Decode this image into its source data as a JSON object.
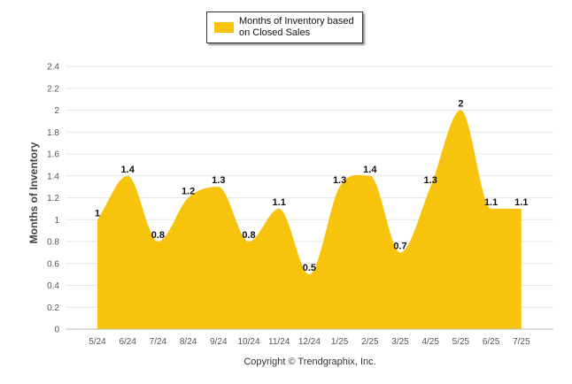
{
  "chart_data": {
    "type": "area",
    "categories": [
      "5/24",
      "6/24",
      "7/24",
      "8/24",
      "9/24",
      "10/24",
      "11/24",
      "12/24",
      "1/25",
      "2/25",
      "3/25",
      "4/25",
      "5/25",
      "6/25",
      "7/25"
    ],
    "series": [
      {
        "name": "Months of Inventory based on Closed Sales",
        "values": [
          1,
          1.4,
          0.8,
          1.2,
          1.3,
          0.8,
          1.1,
          0.5,
          1.3,
          1.4,
          0.7,
          1.3,
          2,
          1.1,
          1.1
        ]
      }
    ],
    "data_labels": [
      "1",
      "1.4",
      "0.8",
      "1.2",
      "1.3",
      "0.8",
      "1.1",
      "0.5",
      "1.3",
      "1.4",
      "0.7",
      "1.3",
      "2",
      "1.1",
      "1.1"
    ],
    "yticks": [
      "0",
      "0.2",
      "0.4",
      "0.6",
      "0.8",
      "1",
      "1.2",
      "1.4",
      "1.6",
      "1.8",
      "2",
      "2.2",
      "2.4"
    ],
    "ylim": [
      0,
      2.4
    ],
    "ylabel": "Months of Inventory",
    "xlabel": "",
    "legend": {
      "label": "Months of Inventory based on Closed Sales",
      "placement": "top-center"
    },
    "grid": true,
    "color": "#F7C30D"
  },
  "copyright": "Copyright © Trendgraphix, Inc."
}
